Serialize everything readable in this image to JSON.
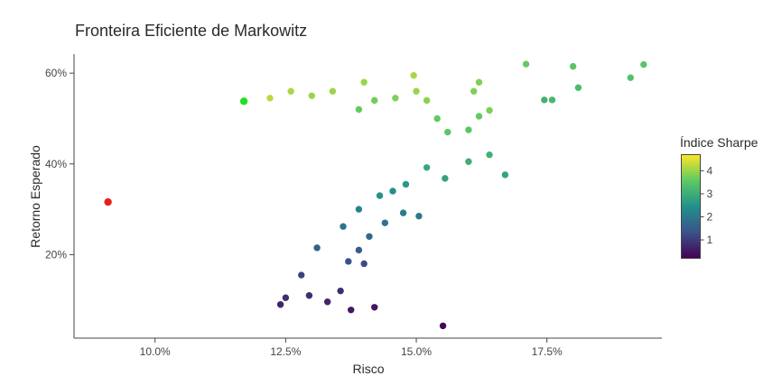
{
  "chart_data": {
    "type": "scatter",
    "title": "Fronteira Eficiente de Markowitz",
    "xlabel": "Risco",
    "ylabel": "Retorno Esperado",
    "xlim": [
      0.0845,
      0.197
    ],
    "ylim": [
      0.016,
      0.642
    ],
    "x_ticks": [
      0.1,
      0.125,
      0.15,
      0.175
    ],
    "x_tick_labels": [
      "10.0%",
      "12.5%",
      "15.0%",
      "17.5%"
    ],
    "y_ticks": [
      0.2,
      0.4,
      0.6
    ],
    "y_tick_labels": [
      "20%",
      "40%",
      "60%"
    ],
    "grid": false,
    "colorbar": {
      "title": "Índice Sharpe",
      "range": [
        0.2,
        4.7
      ],
      "ticks": [
        1,
        2,
        3,
        4
      ],
      "tick_labels": [
        "1",
        "2",
        "3",
        "4"
      ],
      "colors": [
        "#440154",
        "#3b528b",
        "#21918c",
        "#5ec962",
        "#fde725"
      ]
    },
    "highlights": [
      {
        "x": 0.091,
        "y": 0.316,
        "color": "#e8201a"
      },
      {
        "x": 0.117,
        "y": 0.538,
        "color": "#22e022"
      }
    ],
    "series": [
      {
        "points": [
          [
            0.1551,
            0.043,
            0.3
          ],
          [
            0.142,
            0.084,
            0.5
          ],
          [
            0.1375,
            0.078,
            0.5
          ],
          [
            0.14,
            0.18,
            1.2
          ],
          [
            0.1355,
            0.12,
            0.8
          ],
          [
            0.133,
            0.096,
            0.7
          ],
          [
            0.1295,
            0.11,
            0.8
          ],
          [
            0.125,
            0.105,
            0.8
          ],
          [
            0.124,
            0.09,
            0.7
          ],
          [
            0.128,
            0.155,
            1.1
          ],
          [
            0.131,
            0.215,
            1.6
          ],
          [
            0.136,
            0.262,
            1.9
          ],
          [
            0.139,
            0.3,
            2.2
          ],
          [
            0.143,
            0.33,
            2.5
          ],
          [
            0.148,
            0.355,
            2.6
          ],
          [
            0.152,
            0.392,
            2.9
          ],
          [
            0.1555,
            0.368,
            2.8
          ],
          [
            0.16,
            0.405,
            3.0
          ],
          [
            0.164,
            0.42,
            3.1
          ],
          [
            0.167,
            0.376,
            2.8
          ],
          [
            0.164,
            0.518,
            3.8
          ],
          [
            0.162,
            0.505,
            3.6
          ],
          [
            0.16,
            0.475,
            3.5
          ],
          [
            0.156,
            0.47,
            3.5
          ],
          [
            0.154,
            0.5,
            3.6
          ],
          [
            0.152,
            0.54,
            3.9
          ],
          [
            0.15,
            0.56,
            4.0
          ],
          [
            0.1495,
            0.595,
            4.1
          ],
          [
            0.146,
            0.545,
            3.8
          ],
          [
            0.142,
            0.54,
            3.7
          ],
          [
            0.14,
            0.58,
            4.0
          ],
          [
            0.139,
            0.52,
            3.6
          ],
          [
            0.134,
            0.56,
            4.0
          ],
          [
            0.13,
            0.55,
            4.0
          ],
          [
            0.126,
            0.56,
            4.1
          ],
          [
            0.122,
            0.545,
            4.2
          ],
          [
            0.162,
            0.58,
            3.8
          ],
          [
            0.161,
            0.56,
            3.8
          ],
          [
            0.171,
            0.62,
            3.6
          ],
          [
            0.18,
            0.615,
            3.5
          ],
          [
            0.181,
            0.568,
            3.3
          ],
          [
            0.1745,
            0.541,
            3.1
          ],
          [
            0.176,
            0.541,
            3.2
          ],
          [
            0.191,
            0.59,
            3.4
          ],
          [
            0.1935,
            0.619,
            3.5
          ],
          [
            0.1505,
            0.285,
            2.0
          ],
          [
            0.1475,
            0.292,
            2.1
          ],
          [
            0.1455,
            0.34,
            2.4
          ],
          [
            0.137,
            0.185,
            1.3
          ],
          [
            0.144,
            0.27,
            1.9
          ],
          [
            0.141,
            0.24,
            1.7
          ],
          [
            0.139,
            0.21,
            1.5
          ]
        ]
      }
    ]
  }
}
